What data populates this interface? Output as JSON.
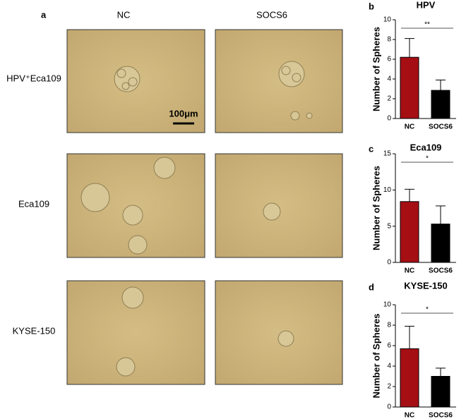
{
  "figure": {
    "panel": "a",
    "columns": [
      "NC",
      "SOCS6"
    ],
    "rows": [
      "HPV⁺Eca109",
      "Eca109",
      "KYSE-150"
    ],
    "scale_bar": "100μm"
  },
  "chart_data": [
    {
      "type": "bar",
      "panel": "b",
      "title": "HPV",
      "ylabel": "Number of Spheres",
      "categories": [
        "NC",
        "SOCS6"
      ],
      "values": [
        6.2,
        2.85
      ],
      "errors": [
        1.9,
        1.05
      ],
      "colors": [
        "#a50f14",
        "#000000"
      ],
      "ylim": [
        0,
        10
      ],
      "yticks": [
        0,
        2,
        4,
        6,
        8,
        10
      ],
      "significance": "**"
    },
    {
      "type": "bar",
      "panel": "c",
      "title": "Eca109",
      "ylabel": "Number of Spheres",
      "categories": [
        "NC",
        "SOCS6"
      ],
      "values": [
        8.4,
        5.3
      ],
      "errors": [
        1.7,
        2.5
      ],
      "colors": [
        "#a50f14",
        "#000000"
      ],
      "ylim": [
        0,
        15
      ],
      "yticks": [
        0,
        5,
        10,
        15
      ],
      "significance": "*"
    },
    {
      "type": "bar",
      "panel": "d",
      "title": "KYSE-150",
      "ylabel": "Number of Spheres",
      "categories": [
        "NC",
        "SOCS6"
      ],
      "values": [
        5.7,
        3.0
      ],
      "errors": [
        2.2,
        0.8
      ],
      "colors": [
        "#a50f14",
        "#000000"
      ],
      "ylim": [
        0,
        10
      ],
      "yticks": [
        0,
        2,
        4,
        6,
        8,
        10
      ],
      "significance": "*"
    }
  ]
}
